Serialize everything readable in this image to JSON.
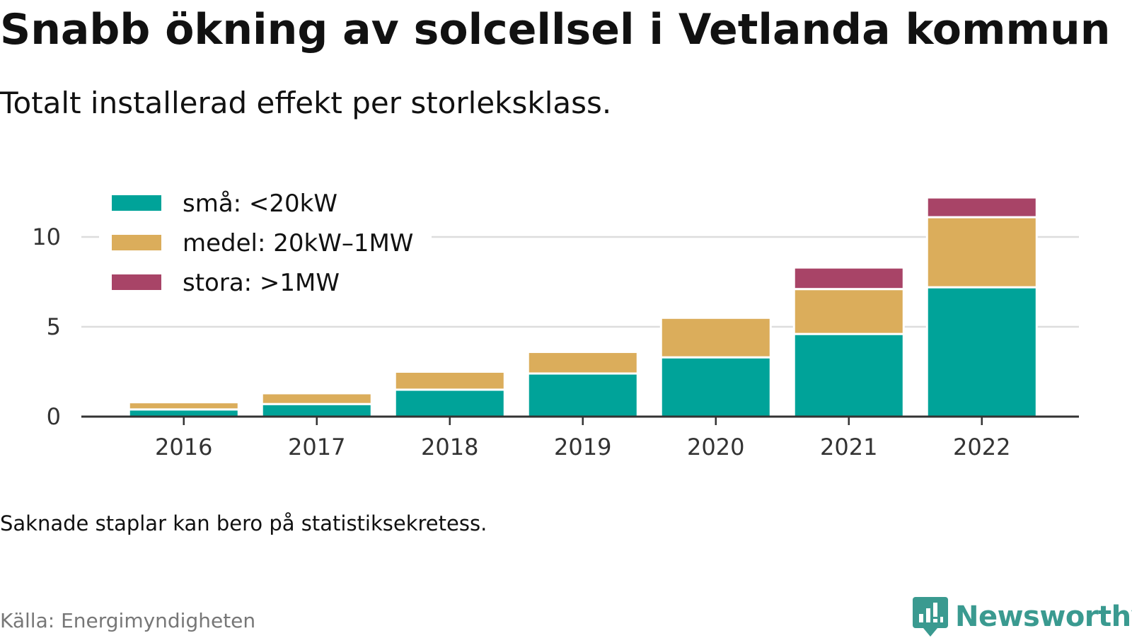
{
  "title": "Snabb ökning av solcellsel i Vetlanda kommun",
  "subtitle": "Totalt installerad effekt per storleksklass.",
  "note": "Saknade staplar kan bero på statistiksekretess.",
  "source": "Källa: Energimyndigheten",
  "brand": "Newsworthy",
  "chart_data": {
    "type": "bar",
    "stacked": true,
    "categories": [
      "2016",
      "2017",
      "2018",
      "2019",
      "2020",
      "2021",
      "2022"
    ],
    "series": [
      {
        "name": "små: <20kW",
        "color": "#00a399",
        "values": [
          0.4,
          0.7,
          1.5,
          2.4,
          3.3,
          4.6,
          7.2
        ]
      },
      {
        "name": "medel: 20kW–1MW",
        "color": "#dbad5b",
        "values": [
          0.4,
          0.6,
          1.0,
          1.2,
          2.2,
          2.5,
          3.9
        ]
      },
      {
        "name": "stora: >1MW",
        "color": "#a84467",
        "values": [
          0,
          0,
          0,
          0,
          0,
          1.2,
          1.1
        ]
      }
    ],
    "yticks": [
      0,
      5,
      10
    ],
    "ylim": [
      0,
      12.2
    ],
    "grid": true,
    "legend": "top-left",
    "xlabel": "",
    "ylabel": ""
  }
}
